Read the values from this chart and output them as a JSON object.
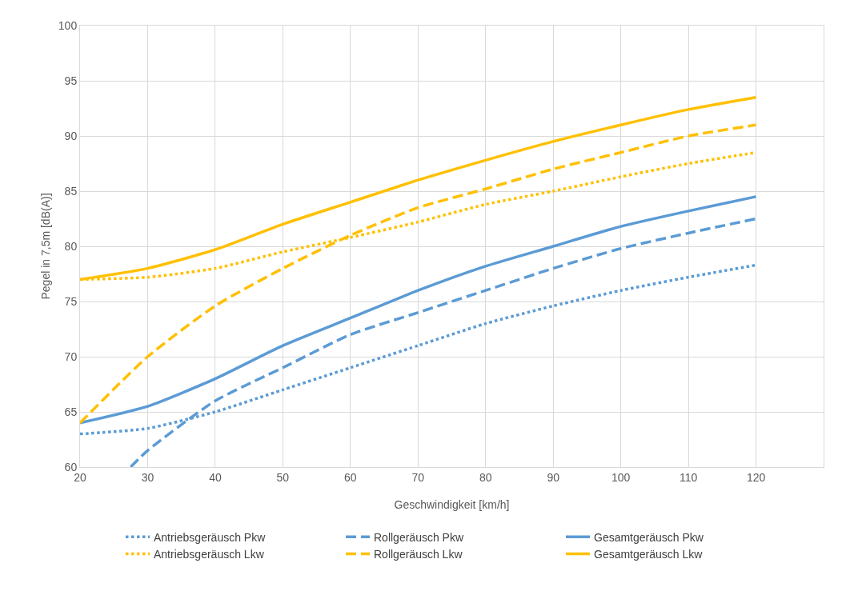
{
  "chart_data": {
    "type": "line",
    "xlabel": "Geschwindigkeit [km/h]",
    "ylabel": "Pegel in 7,5m [dB(A)]",
    "x": [
      20,
      30,
      40,
      50,
      60,
      70,
      80,
      90,
      100,
      110,
      120
    ],
    "xlim": [
      20,
      130
    ],
    "xticks": [
      20,
      30,
      40,
      50,
      60,
      70,
      80,
      90,
      100,
      110,
      120
    ],
    "ylim": [
      60,
      100
    ],
    "yticks": [
      60,
      65,
      70,
      75,
      80,
      85,
      90,
      95,
      100
    ],
    "grid": true,
    "legend": "bottom",
    "marker": "none",
    "series": [
      {
        "name": "Antriebsgeräusch Pkw",
        "color": "#5b9bd5",
        "line_style": "dotted",
        "values": [
          63,
          63.5,
          65,
          67,
          69,
          71,
          73,
          74.6,
          76,
          77.2,
          78.3
        ]
      },
      {
        "name": "Rollgeräusch Pkw",
        "color": "#5b9bd5",
        "line_style": "dashed",
        "x": [
          27.5,
          30,
          40,
          50,
          60,
          70,
          80,
          90,
          100,
          110,
          120
        ],
        "values": [
          60,
          61.5,
          66,
          69,
          72,
          74,
          76,
          78,
          79.8,
          81.2,
          82.5
        ]
      },
      {
        "name": "Gesamtgeräusch Pkw",
        "color": "#5b9bd5",
        "line_style": "solid",
        "values": [
          64,
          65.5,
          68,
          71,
          73.5,
          76,
          78.2,
          80,
          81.8,
          83.2,
          84.5
        ]
      },
      {
        "name": "Antriebsgeräusch Lkw",
        "color": "#ffc000",
        "line_style": "dotted",
        "values": [
          77,
          77.2,
          78,
          79.5,
          80.8,
          82.2,
          83.8,
          85,
          86.3,
          87.5,
          88.5
        ]
      },
      {
        "name": "Rollgeräusch Lkw",
        "color": "#ffc000",
        "line_style": "dashed",
        "values": [
          64,
          70,
          74.6,
          78,
          81,
          83.5,
          85.2,
          87,
          88.5,
          90,
          91
        ]
      },
      {
        "name": "Gesamtgeräusch Lkw",
        "color": "#ffc000",
        "line_style": "solid",
        "values": [
          77,
          78,
          79.7,
          82,
          84,
          86,
          87.8,
          89.5,
          91,
          92.4,
          93.5
        ]
      }
    ]
  }
}
